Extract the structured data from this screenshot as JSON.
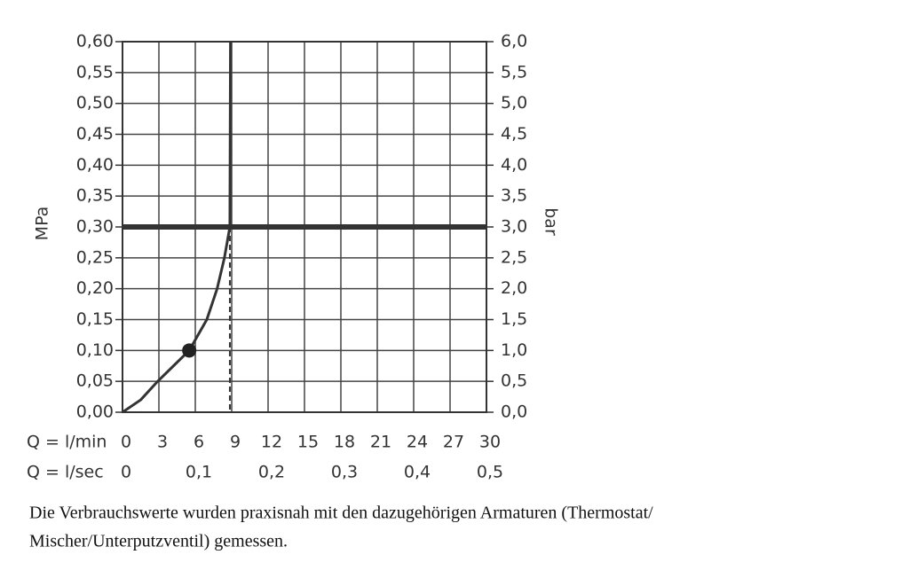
{
  "chart_data": {
    "type": "line",
    "ylabel": "MPa",
    "y2label": "bar",
    "xlabel": "Q = l/min",
    "x2label": "Q = l/sec",
    "xlim": [
      0,
      30
    ],
    "xticks": [
      0,
      3,
      6,
      9,
      12,
      15,
      18,
      21,
      24,
      27,
      30
    ],
    "x2lim": [
      0,
      0.5
    ],
    "x2ticks": [
      0,
      {
        "value": 0.1,
        "label": "0,1"
      },
      {
        "value": 0.2,
        "label": "0,2"
      },
      {
        "value": 0.3,
        "label": "0,3"
      },
      {
        "value": 0.4,
        "label": "0,4"
      },
      {
        "value": 0.5,
        "label": "0,5"
      }
    ],
    "ylim": [
      0,
      0.6
    ],
    "yticks": [
      {
        "value": 0,
        "label": "0,00"
      },
      {
        "value": 0.05,
        "label": "0,05"
      },
      {
        "value": 0.1,
        "label": "0,10"
      },
      {
        "value": 0.15,
        "label": "0,15"
      },
      {
        "value": 0.2,
        "label": "0,20"
      },
      {
        "value": 0.25,
        "label": "0,25"
      },
      {
        "value": 0.3,
        "label": "0,30"
      },
      {
        "value": 0.35,
        "label": "0,35"
      },
      {
        "value": 0.4,
        "label": "0,40"
      },
      {
        "value": 0.45,
        "label": "0,45"
      },
      {
        "value": 0.5,
        "label": "0,50"
      },
      {
        "value": 0.55,
        "label": "0,55"
      },
      {
        "value": 0.6,
        "label": "0,60"
      }
    ],
    "y2lim": [
      0,
      6
    ],
    "y2ticks": [
      {
        "value": 0,
        "label": "0,0"
      },
      {
        "value": 0.5,
        "label": "0,5"
      },
      {
        "value": 1,
        "label": "1,0"
      },
      {
        "value": 1.5,
        "label": "1,5"
      },
      {
        "value": 2,
        "label": "2,0"
      },
      {
        "value": 2.5,
        "label": "2,5"
      },
      {
        "value": 3,
        "label": "3,0"
      },
      {
        "value": 3.5,
        "label": "3,5"
      },
      {
        "value": 4,
        "label": "4,0"
      },
      {
        "value": 4.5,
        "label": "4,5"
      },
      {
        "value": 5,
        "label": "5,0"
      },
      {
        "value": 5.5,
        "label": "5,5"
      },
      {
        "value": 6,
        "label": "6,0"
      }
    ],
    "grid": true,
    "series": [
      {
        "color": "#333333",
        "x": [
          0,
          1.5,
          2.9,
          4.2,
          5.5,
          6.95,
          7.8,
          8.4,
          8.85,
          8.9
        ],
        "values": [
          0,
          0.02,
          0.05,
          0.075,
          0.1,
          0.15,
          0.2,
          0.25,
          0.3,
          0.6
        ]
      }
    ],
    "marker": {
      "x": 5.5,
      "y": 0.1
    },
    "hline": 0.3,
    "vline": 8.85,
    "caption": [
      "Die Verbrauchswerte wurden praxisnah mit den dazugehörigen Armaturen (Thermostat/",
      "Mischer/Unterputzventil) gemessen."
    ]
  }
}
